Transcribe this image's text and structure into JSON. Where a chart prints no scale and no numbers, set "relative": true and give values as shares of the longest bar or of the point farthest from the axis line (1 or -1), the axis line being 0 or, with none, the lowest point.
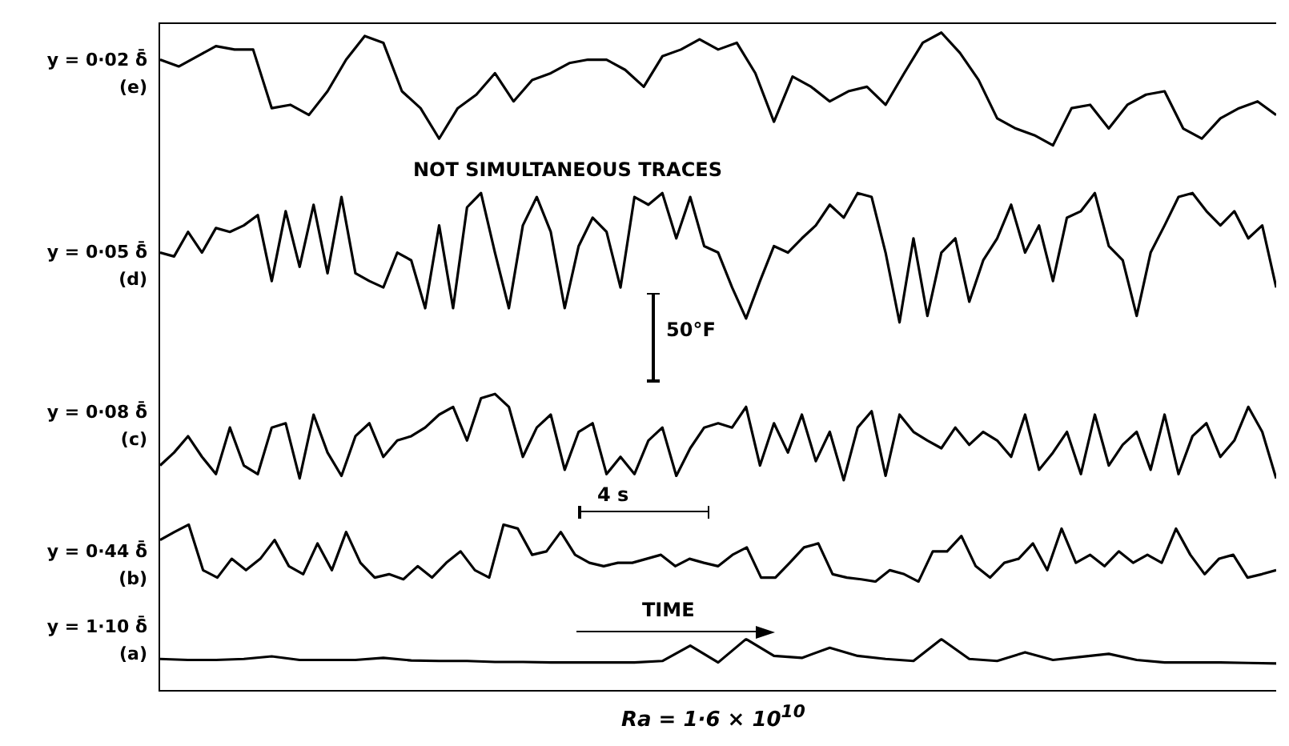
{
  "chart_data": [
    {
      "type": "line",
      "relative": true,
      "ylabel": "y = 0·02 δ̄\n(e)",
      "categories": [
        null,
        null,
        null,
        null,
        null,
        null,
        null,
        null,
        null,
        null,
        null,
        null,
        null,
        null,
        null,
        null,
        null,
        null,
        null,
        null,
        null,
        null,
        null,
        null,
        null,
        null,
        null,
        null,
        null,
        null,
        null,
        null,
        null,
        null,
        null,
        null,
        null,
        null,
        null,
        null,
        null,
        null,
        null,
        null,
        null,
        null,
        null,
        null,
        null,
        null,
        null,
        null,
        null,
        null,
        null,
        null,
        null,
        null,
        null,
        null,
        null
      ],
      "series": [
        {
          "color": "#000000",
          "values": [
            0.76,
            0.7,
            0.79,
            0.88,
            0.85,
            0.85,
            0.33,
            0.36,
            0.27,
            0.48,
            0.76,
            0.97,
            0.91,
            0.48,
            0.33,
            0.06,
            0.33,
            0.45,
            0.64,
            0.39,
            0.58,
            0.64,
            0.73,
            0.76,
            0.76,
            0.67,
            0.52,
            0.79,
            0.85,
            0.94,
            0.85,
            0.91,
            0.64,
            0.21,
            0.61,
            0.52,
            0.39,
            0.48,
            0.52,
            0.36,
            0.64,
            0.91,
            1.0,
            0.82,
            0.58,
            0.24,
            0.15,
            0.09,
            0.0,
            0.33,
            0.36,
            0.15,
            0.36,
            0.45,
            0.48,
            0.15,
            0.06,
            0.24,
            0.33,
            0.39,
            0.27
          ]
        }
      ],
      "grid": false,
      "legend": false,
      "tick_labels": false,
      "marker": "none",
      "line_style": "solid",
      "annotations": [
        "NOT SIMULTANEOUS TRACES"
      ]
    },
    {
      "type": "line",
      "relative": true,
      "ylabel": "y = 0·05 δ̄\n(d)",
      "categories": [
        null,
        null,
        null,
        null,
        null,
        null,
        null,
        null,
        null,
        null,
        null,
        null,
        null,
        null,
        null,
        null,
        null,
        null,
        null,
        null,
        null,
        null,
        null,
        null,
        null,
        null,
        null,
        null,
        null,
        null,
        null,
        null,
        null,
        null,
        null,
        null,
        null,
        null,
        null,
        null,
        null,
        null,
        null,
        null,
        null,
        null,
        null,
        null,
        null,
        null,
        null,
        null,
        null,
        null,
        null,
        null,
        null,
        null,
        null,
        null,
        null,
        null,
        null,
        null,
        null,
        null,
        null,
        null,
        null,
        null,
        null,
        null,
        null,
        null,
        null,
        null,
        null,
        null,
        null,
        null,
        null
      ],
      "series": [
        {
          "color": "#000000",
          "values": [
            0.54,
            0.51,
            0.7,
            0.54,
            0.73,
            0.7,
            0.75,
            0.83,
            0.32,
            0.86,
            0.43,
            0.91,
            0.38,
            0.97,
            0.38,
            0.32,
            0.27,
            0.54,
            0.48,
            0.11,
            0.75,
            0.11,
            0.89,
            1.0,
            0.54,
            0.11,
            0.75,
            0.97,
            0.7,
            0.11,
            0.59,
            0.81,
            0.7,
            0.27,
            0.97,
            0.91,
            1.0,
            0.65,
            0.97,
            0.59,
            0.54,
            0.27,
            0.03,
            0.32,
            0.59,
            0.54,
            0.65,
            0.75,
            0.91,
            0.81,
            1.0,
            0.97,
            0.54,
            0.0,
            0.65,
            0.05,
            0.54,
            0.65,
            0.16,
            0.48,
            0.65,
            0.91,
            0.54,
            0.75,
            0.32,
            0.81,
            0.86,
            1.0,
            0.59,
            0.48,
            0.05,
            0.54,
            0.75,
            0.97,
            1.0,
            0.86,
            0.75,
            0.86,
            0.65,
            0.75,
            0.27
          ]
        }
      ],
      "grid": false,
      "legend": false,
      "tick_labels": false,
      "marker": "none",
      "line_style": "solid",
      "annotations": [
        "50°F"
      ]
    },
    {
      "type": "line",
      "relative": true,
      "ylabel": "y = 0·08 δ̄\n(c)",
      "categories": [
        null,
        null,
        null,
        null,
        null,
        null,
        null,
        null,
        null,
        null,
        null,
        null,
        null,
        null,
        null,
        null,
        null,
        null,
        null,
        null,
        null,
        null,
        null,
        null,
        null,
        null,
        null,
        null,
        null,
        null,
        null,
        null,
        null,
        null,
        null,
        null,
        null,
        null,
        null,
        null,
        null,
        null,
        null,
        null,
        null,
        null,
        null,
        null,
        null,
        null,
        null,
        null,
        null,
        null,
        null,
        null,
        null,
        null,
        null,
        null,
        null,
        null,
        null,
        null,
        null,
        null,
        null,
        null,
        null,
        null,
        null,
        null,
        null,
        null,
        null,
        null,
        null,
        null,
        null,
        null,
        null
      ],
      "series": [
        {
          "color": "#000000",
          "values": [
            0.17,
            0.32,
            0.51,
            0.27,
            0.07,
            0.61,
            0.17,
            0.07,
            0.61,
            0.66,
            0.02,
            0.76,
            0.32,
            0.05,
            0.51,
            0.66,
            0.27,
            0.46,
            0.51,
            0.61,
            0.76,
            0.85,
            0.46,
            0.95,
            1.0,
            0.85,
            0.27,
            0.61,
            0.76,
            0.12,
            0.56,
            0.66,
            0.07,
            0.27,
            0.07,
            0.46,
            0.61,
            0.05,
            0.37,
            0.61,
            0.66,
            0.61,
            0.85,
            0.17,
            0.66,
            0.32,
            0.76,
            0.22,
            0.56,
            0.0,
            0.61,
            0.8,
            0.05,
            0.76,
            0.56,
            0.46,
            0.37,
            0.61,
            0.41,
            0.56,
            0.46,
            0.27,
            0.76,
            0.12,
            0.32,
            0.56,
            0.07,
            0.76,
            0.17,
            0.41,
            0.56,
            0.12,
            0.76,
            0.07,
            0.51,
            0.66,
            0.27,
            0.46,
            0.85,
            0.56,
            0.02
          ]
        }
      ],
      "grid": false,
      "legend": false,
      "tick_labels": false,
      "marker": "none",
      "line_style": "solid",
      "annotations": [
        "4 s"
      ]
    },
    {
      "type": "line",
      "relative": true,
      "ylabel": "y = 0·44 δ̄\n(b)",
      "categories": [
        null,
        null,
        null,
        null,
        null,
        null,
        null,
        null,
        null,
        null,
        null,
        null,
        null,
        null,
        null,
        null,
        null,
        null,
        null,
        null,
        null,
        null,
        null,
        null,
        null,
        null,
        null,
        null,
        null,
        null,
        null,
        null,
        null,
        null,
        null,
        null,
        null,
        null,
        null,
        null,
        null,
        null,
        null,
        null,
        null,
        null,
        null,
        null,
        null,
        null,
        null,
        null,
        null,
        null,
        null,
        null,
        null,
        null,
        null,
        null,
        null,
        null,
        null,
        null,
        null,
        null,
        null,
        null,
        null,
        null,
        null,
        null,
        null,
        null,
        null,
        null,
        null,
        null,
        null
      ],
      "series": [
        {
          "color": "#000000",
          "values": [
            0.73,
            0.87,
            1.0,
            0.2,
            0.07,
            0.4,
            0.2,
            0.4,
            0.73,
            0.27,
            0.13,
            0.67,
            0.2,
            0.87,
            0.33,
            0.07,
            0.13,
            0.04,
            0.27,
            0.07,
            0.33,
            0.53,
            0.2,
            0.07,
            1.0,
            0.93,
            0.47,
            0.53,
            0.87,
            0.47,
            0.33,
            0.27,
            0.33,
            0.33,
            0.4,
            0.47,
            0.27,
            0.4,
            0.33,
            0.27,
            0.47,
            0.6,
            0.07,
            0.07,
            0.33,
            0.6,
            0.67,
            0.13,
            0.07,
            0.04,
            0.0,
            0.2,
            0.13,
            0.0,
            0.53,
            0.53,
            0.8,
            0.27,
            0.07,
            0.33,
            0.4,
            0.67,
            0.2,
            0.93,
            0.33,
            0.47,
            0.27,
            0.53,
            0.33,
            0.47,
            0.33,
            0.93,
            0.47,
            0.13,
            0.4,
            0.47,
            0.07,
            0.13,
            0.2
          ]
        }
      ],
      "grid": false,
      "legend": false,
      "tick_labels": false,
      "marker": "none",
      "line_style": "solid"
    },
    {
      "type": "line",
      "relative": true,
      "ylabel": "y = 1·10 δ̄\n(a)",
      "categories": [
        null,
        null,
        null,
        null,
        null,
        null,
        null,
        null,
        null,
        null,
        null,
        null,
        null,
        null,
        null,
        null,
        null,
        null,
        null,
        null,
        null,
        null,
        null,
        null,
        null,
        null,
        null,
        null,
        null,
        null,
        null,
        null,
        null,
        null,
        null,
        null,
        null,
        null,
        null,
        null,
        null
      ],
      "series": [
        {
          "color": "#000000",
          "values": [
            0.61,
            0.59,
            0.59,
            0.61,
            0.66,
            0.59,
            0.59,
            0.59,
            0.63,
            0.58,
            0.57,
            0.57,
            0.55,
            0.55,
            0.54,
            0.54,
            0.54,
            0.54,
            0.57,
            0.87,
            0.54,
            1.0,
            0.67,
            0.63,
            0.83,
            0.67,
            0.61,
            0.57,
            1.0,
            0.61,
            0.57,
            0.74,
            0.59,
            0.65,
            0.71,
            0.59,
            0.54,
            0.54,
            0.54,
            0.53,
            0.52
          ]
        }
      ],
      "grid": false,
      "legend": false,
      "tick_labels": false,
      "marker": "none",
      "line_style": "solid",
      "annotations": [
        "TIME",
        "Ra = 1·6 × 10$^{10}$"
      ]
    }
  ]
}
